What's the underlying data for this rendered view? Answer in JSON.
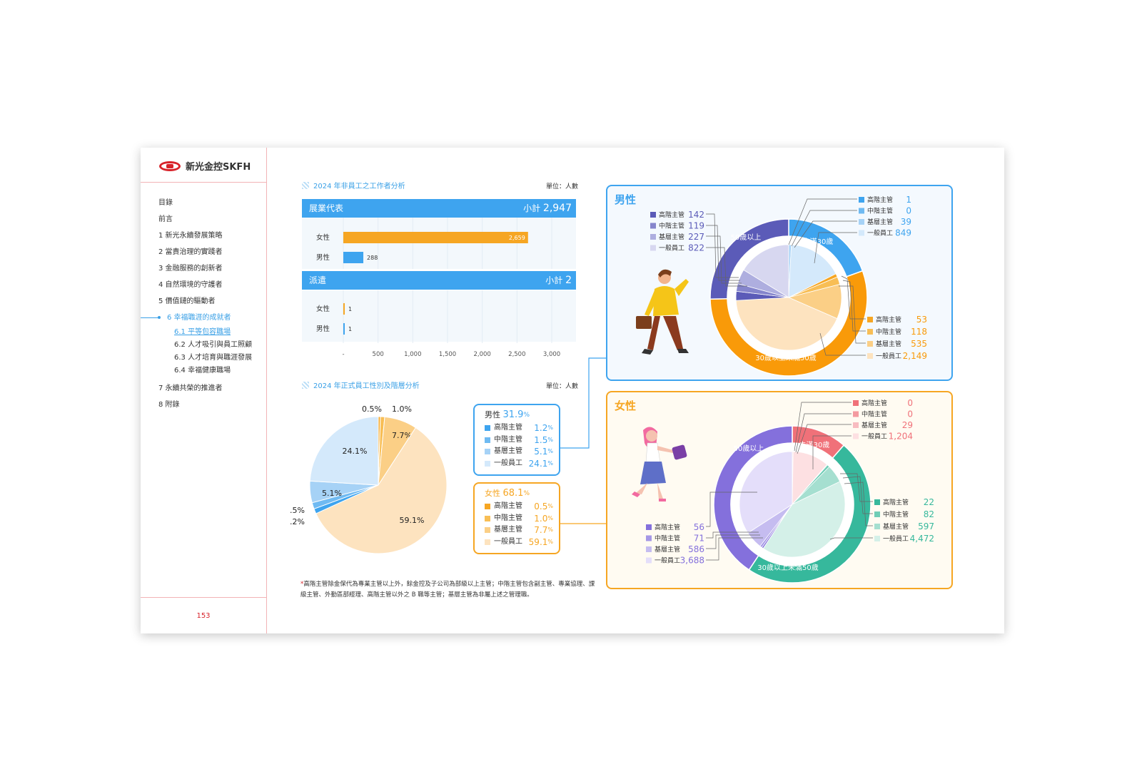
{
  "brand": {
    "name": "新光金控SKFH"
  },
  "nav": {
    "items": [
      "目錄",
      "前言",
      "1 新光永續發展策略",
      "2 當責治理的實踐者",
      "3 金融服務的創新者",
      "4 自然環境的守護者",
      "5 價值鏈的驅動者"
    ],
    "active": "6 幸福職涯的成就者",
    "subs": [
      "6.1 平等包容職場",
      "6.2 人才吸引與員工照顧",
      "6.3 人才培育與職涯發展",
      "6.4 幸福健康職場"
    ],
    "after": [
      "7 永續共榮的推進者",
      "8 附錄"
    ]
  },
  "page_number": "153",
  "sec1": {
    "title": "2024 年非員工之工作者分析",
    "unit": "單位：人數"
  },
  "sec2": {
    "title": "2024 年正式員工性別及階層分析",
    "unit": "單位：人數"
  },
  "bar_head1": {
    "label": "展業代表",
    "subtotal_label": "小計",
    "subtotal": "2,947"
  },
  "bar_head2": {
    "label": "派遣",
    "subtotal_label": "小計",
    "subtotal": "2"
  },
  "chart_data": [
    {
      "type": "bar",
      "orientation": "horizontal",
      "group": "展業代表",
      "categories": [
        "女性",
        "男性"
      ],
      "values": [
        2659,
        288
      ],
      "value_labels": [
        "2,659",
        "288"
      ],
      "colors": [
        "#f6a623",
        "#3ea4ef"
      ],
      "xlim": [
        0,
        3000
      ],
      "ticks": [
        "-",
        "500",
        "1,000",
        "1,500",
        "2,000",
        "2,500",
        "3,000"
      ]
    },
    {
      "type": "bar",
      "orientation": "horizontal",
      "group": "派遣",
      "categories": [
        "女性",
        "男性"
      ],
      "values": [
        1,
        1
      ],
      "value_labels": [
        "1",
        "1"
      ],
      "colors": [
        "#f6a623",
        "#3ea4ef"
      ],
      "xlim": [
        0,
        3000
      ]
    },
    {
      "type": "pie",
      "slices": [
        {
          "label": "0.5%",
          "value": 0.5,
          "color": "#f6a623"
        },
        {
          "label": "1.0%",
          "value": 1.0,
          "color": "#f8be55"
        },
        {
          "label": "7.7%",
          "value": 7.7,
          "color": "#fbcf86"
        },
        {
          "label": "59.1%",
          "value": 59.1,
          "color": "#fde3bf"
        },
        {
          "label": "1.2%",
          "value": 1.2,
          "color": "#3ea4ef"
        },
        {
          "label": "1.5%",
          "value": 1.5,
          "color": "#6fbaf2"
        },
        {
          "label": "5.1%",
          "value": 5.1,
          "color": "#a6d2f6"
        },
        {
          "label": "24.1%",
          "value": 24.1,
          "color": "#d4e9fb"
        }
      ]
    },
    {
      "type": "pie",
      "group": "男性",
      "outer_ring": [
        {
          "label": "未滿30歲",
          "value": 1009,
          "color": "#3ea4ef"
        },
        {
          "label": "30歲以上未滿50歲",
          "value": 2855,
          "color": "#f99a09"
        },
        {
          "label": "50歲以上",
          "value": 1310,
          "color": "#5b5bb8"
        }
      ],
      "inner_pie": [
        {
          "label": "高階主管",
          "value": 1,
          "color": "#3ea4ef"
        },
        {
          "label": "中階主管",
          "value": 0,
          "color": "#6fbaf2"
        },
        {
          "label": "基層主管",
          "value": 39,
          "color": "#a6d2f6"
        },
        {
          "label": "一般員工",
          "value": 849,
          "color": "#d4e9fb"
        },
        {
          "label": "高階主管",
          "value": 53,
          "color": "#f6a623"
        },
        {
          "label": "中階主管",
          "value": 118,
          "color": "#f8be55"
        },
        {
          "label": "基層主管",
          "value": 535,
          "color": "#fbcf86"
        },
        {
          "label": "一般員工",
          "value": 2149,
          "color": "#fde3bf"
        },
        {
          "label": "高階主管",
          "value": 142,
          "color": "#5b5bb8"
        },
        {
          "label": "中階主管",
          "value": 119,
          "color": "#8585cc"
        },
        {
          "label": "基層主管",
          "value": 227,
          "color": "#aeaedf"
        },
        {
          "label": "一般員工",
          "value": 822,
          "color": "#d7d7f0"
        }
      ]
    },
    {
      "type": "pie",
      "group": "女性",
      "outer_ring": [
        {
          "label": "未滿30歲",
          "value": 1233,
          "color": "#f07179"
        },
        {
          "label": "30歲以上未滿50歲",
          "value": 5173,
          "color": "#36b89c"
        },
        {
          "label": "50歲以上",
          "value": 4401,
          "color": "#8470dc"
        }
      ],
      "inner_pie": [
        {
          "label": "高階主管",
          "value": 0,
          "color": "#f07179"
        },
        {
          "label": "中階主管",
          "value": 0,
          "color": "#f49aa0"
        },
        {
          "label": "基層主管",
          "value": 29,
          "color": "#f8bcc0"
        },
        {
          "label": "一般員工",
          "value": 1204,
          "color": "#fde0e2"
        },
        {
          "label": "高階主管",
          "value": 22,
          "color": "#36b89c"
        },
        {
          "label": "中階主管",
          "value": 82,
          "color": "#6fcdb6"
        },
        {
          "label": "基層主管",
          "value": 597,
          "color": "#a5dfd0"
        },
        {
          "label": "一般員工",
          "value": 4472,
          "color": "#d4f0e8"
        },
        {
          "label": "高階主管",
          "value": 56,
          "color": "#8470dc"
        },
        {
          "label": "中階主管",
          "value": 71,
          "color": "#a597e6"
        },
        {
          "label": "基層主管",
          "value": 586,
          "color": "#c5bcf0"
        },
        {
          "label": "一般員工",
          "value": 3688,
          "color": "#e4defa"
        }
      ]
    }
  ],
  "legend_male": {
    "title": "男性",
    "percent": "31.9",
    "pct": "%",
    "rows": [
      {
        "label": "高階主管",
        "value": "1.2",
        "color": "#3ea4ef"
      },
      {
        "label": "中階主管",
        "value": "1.5",
        "color": "#6fbaf2"
      },
      {
        "label": "基層主管",
        "value": "5.1",
        "color": "#a6d2f6"
      },
      {
        "label": "一般員工",
        "value": "24.1",
        "color": "#d4e9fb"
      }
    ]
  },
  "legend_female": {
    "title": "女性",
    "percent": "68.1",
    "pct": "%",
    "rows": [
      {
        "label": "高階主管",
        "value": "0.5",
        "color": "#f6a623"
      },
      {
        "label": "中階主管",
        "value": "1.0",
        "color": "#f8be55"
      },
      {
        "label": "基層主管",
        "value": "7.7",
        "color": "#fbcf86"
      },
      {
        "label": "一般員工",
        "value": "59.1",
        "color": "#fde3bf"
      }
    ]
  },
  "male_box": {
    "title": "男性",
    "accent": "#3ea4ef"
  },
  "female_box": {
    "title": "女性",
    "accent": "#f6a623"
  },
  "note": {
    "asterisk": "*",
    "text": "高階主管除金保代為專業主管以上外，餘金控及子公司為部級以上主管；中階主管包含副主管、專業協理、課級主管、外勤區部經理、高階主管以外之 B 職等主管；基層主管為非屬上述之管理職。"
  }
}
